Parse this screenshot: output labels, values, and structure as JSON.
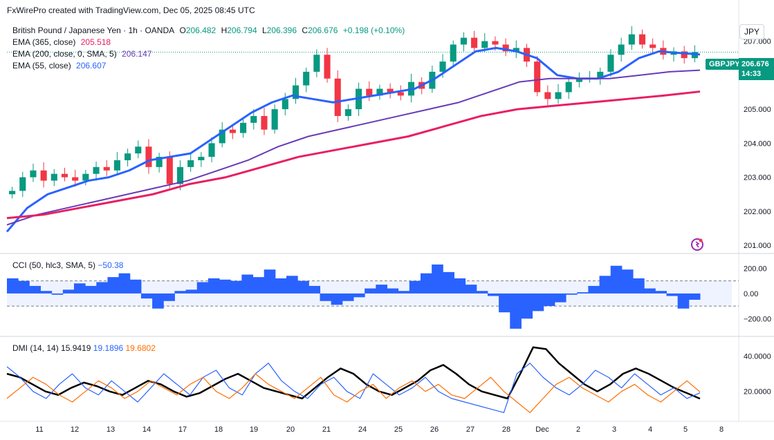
{
  "header": {
    "credit": "FxWirePro created with TradingView.com, Dec 05, 2025 08:45 UTC"
  },
  "symbol": {
    "title": "British Pound / Japanese Yen · 1h · OANDA",
    "open_label": "O",
    "open": "206.482",
    "high_label": "H",
    "high": "206.794",
    "low_label": "L",
    "low": "206.396",
    "close_label": "C",
    "close": "206.676",
    "change": "+0.198 (+0.10%)",
    "ticker": "GBPJPY",
    "last_price": "206.676",
    "countdown": "14:33",
    "currency": "JPY"
  },
  "indicators": {
    "ema365": {
      "label": "EMA (365, close)",
      "value": "205.518",
      "color": "#e91e63"
    },
    "ema200": {
      "label": "EMA (200, close, 0, SMA, 5)",
      "value": "206.147",
      "color": "#673ab7"
    },
    "ema55": {
      "label": "EMA (55, close)",
      "value": "206.607",
      "color": "#2962ff"
    },
    "cci": {
      "label": "CCI (50, hlc3, SMA, 5)",
      "value": "−50.38",
      "color": "#2962ff"
    },
    "dmi": {
      "label": "DMI (14, 14)",
      "adx": "15.9419",
      "plus_di": "19.1896",
      "minus_di": "19.6802",
      "adx_color": "#000000",
      "plus_color": "#2962ff",
      "minus_color": "#ff6d00"
    }
  },
  "icons": {
    "tv_logo": "tradingview-logo-icon"
  },
  "chart_data": [
    {
      "type": "candlestick",
      "title": "British Pound / Japanese Yen · 1h · OANDA",
      "x_tick_labels": [
        "11",
        "12",
        "13",
        "14",
        "17",
        "18",
        "19",
        "20",
        "21",
        "24",
        "25",
        "26",
        "27",
        "28",
        "Dec",
        "2",
        "3",
        "4",
        "5",
        "8"
      ],
      "y_tick_labels": [
        "207.000",
        "206.000",
        "205.000",
        "204.000",
        "203.000",
        "202.000",
        "201.000"
      ],
      "ylim": [
        200.8,
        207.6
      ],
      "series": [
        {
          "name": "price_close_approx",
          "values": [
            202.6,
            203.0,
            203.2,
            202.9,
            203.1,
            203.0,
            202.9,
            203.1,
            203.3,
            203.2,
            203.5,
            203.7,
            203.9,
            203.3,
            203.6,
            202.8,
            203.3,
            203.5,
            203.6,
            204.0,
            204.4,
            204.3,
            204.6,
            204.8,
            204.4,
            205.0,
            205.3,
            205.7,
            206.1,
            206.6,
            205.9,
            204.8,
            205.0,
            205.6,
            205.4,
            205.6,
            205.5,
            205.4,
            205.8,
            205.6,
            206.1,
            206.4,
            206.9,
            207.1,
            206.8,
            207.0,
            206.9,
            206.7,
            206.8,
            206.4,
            205.5,
            205.3,
            205.5,
            205.8,
            205.9,
            205.9,
            206.1,
            206.6,
            206.9,
            207.2,
            206.9,
            206.8,
            206.6,
            206.7,
            206.5,
            206.68
          ]
        },
        {
          "name": "EMA 55",
          "values": [
            201.4,
            202.1,
            202.5,
            202.7,
            202.9,
            203.0,
            203.2,
            203.5,
            203.6,
            203.7,
            204.1,
            204.5,
            204.9,
            205.2,
            205.4,
            205.3,
            205.2,
            205.3,
            205.4,
            205.5,
            205.6,
            205.9,
            206.3,
            206.7,
            206.8,
            206.7,
            206.5,
            206.0,
            205.9,
            205.9,
            206.1,
            206.5,
            206.7,
            206.65,
            206.607
          ]
        },
        {
          "name": "EMA 200",
          "values": [
            201.6,
            201.9,
            202.1,
            202.3,
            202.5,
            202.7,
            202.9,
            203.2,
            203.5,
            203.9,
            204.2,
            204.4,
            204.6,
            204.8,
            205.0,
            205.2,
            205.5,
            205.8,
            205.9,
            205.9,
            205.9,
            206.0,
            206.1,
            206.147
          ]
        },
        {
          "name": "EMA 365",
          "values": [
            201.8,
            201.9,
            202.1,
            202.3,
            202.5,
            202.8,
            203.0,
            203.3,
            203.6,
            203.8,
            204.0,
            204.2,
            204.5,
            204.8,
            205.0,
            205.1,
            205.2,
            205.3,
            205.4,
            205.518
          ]
        }
      ]
    },
    {
      "type": "bar",
      "title": "CCI (50, hlc3, SMA, 5)",
      "y_tick_labels": [
        "200.00",
        "0.00",
        "−200.00"
      ],
      "ylim": [
        -330,
        290
      ],
      "series": [
        {
          "name": "CCI",
          "values": [
            120,
            100,
            60,
            20,
            -10,
            30,
            80,
            60,
            90,
            130,
            160,
            110,
            -40,
            -120,
            -60,
            20,
            30,
            90,
            120,
            110,
            100,
            150,
            130,
            190,
            120,
            140,
            100,
            60,
            -60,
            -90,
            -60,
            -30,
            40,
            70,
            40,
            20,
            100,
            160,
            230,
            170,
            120,
            70,
            20,
            -20,
            -150,
            -280,
            -200,
            -140,
            -100,
            -70,
            -10,
            10,
            60,
            140,
            220,
            190,
            120,
            40,
            20,
            -20,
            -120,
            -50
          ]
        }
      ]
    },
    {
      "type": "line",
      "title": "DMI (14, 14)",
      "y_tick_labels": [
        "40.0000",
        "20.0000"
      ],
      "ylim": [
        5,
        50
      ],
      "series": [
        {
          "name": "ADX",
          "values": [
            30,
            28,
            24,
            20,
            18,
            22,
            25,
            23,
            20,
            18,
            22,
            26,
            24,
            20,
            17,
            19,
            23,
            27,
            30,
            26,
            22,
            20,
            18,
            16,
            22,
            28,
            33,
            30,
            24,
            20,
            18,
            22,
            26,
            32,
            35,
            30,
            24,
            20,
            18,
            16,
            30,
            45,
            44,
            36,
            30,
            24,
            20,
            24,
            30,
            33,
            30,
            26,
            22,
            19,
            15.9
          ]
        },
        {
          "name": "+DI",
          "values": [
            34,
            28,
            20,
            16,
            24,
            30,
            22,
            18,
            26,
            20,
            14,
            22,
            30,
            24,
            18,
            28,
            32,
            22,
            18,
            30,
            36,
            26,
            20,
            16,
            24,
            28,
            20,
            16,
            30,
            24,
            18,
            22,
            28,
            20,
            16,
            14,
            12,
            10,
            8,
            30,
            36,
            28,
            22,
            18,
            24,
            32,
            28,
            22,
            30,
            24,
            18,
            22,
            16,
            19.2
          ]
        },
        {
          "name": "−DI",
          "values": [
            16,
            22,
            28,
            24,
            18,
            14,
            20,
            26,
            22,
            16,
            20,
            26,
            22,
            18,
            24,
            28,
            20,
            16,
            22,
            30,
            24,
            20,
            16,
            22,
            28,
            18,
            14,
            20,
            24,
            16,
            22,
            26,
            20,
            24,
            18,
            16,
            22,
            28,
            20,
            14,
            8,
            16,
            24,
            28,
            22,
            18,
            14,
            20,
            24,
            18,
            14,
            20,
            26,
            19.7
          ]
        }
      ]
    }
  ]
}
